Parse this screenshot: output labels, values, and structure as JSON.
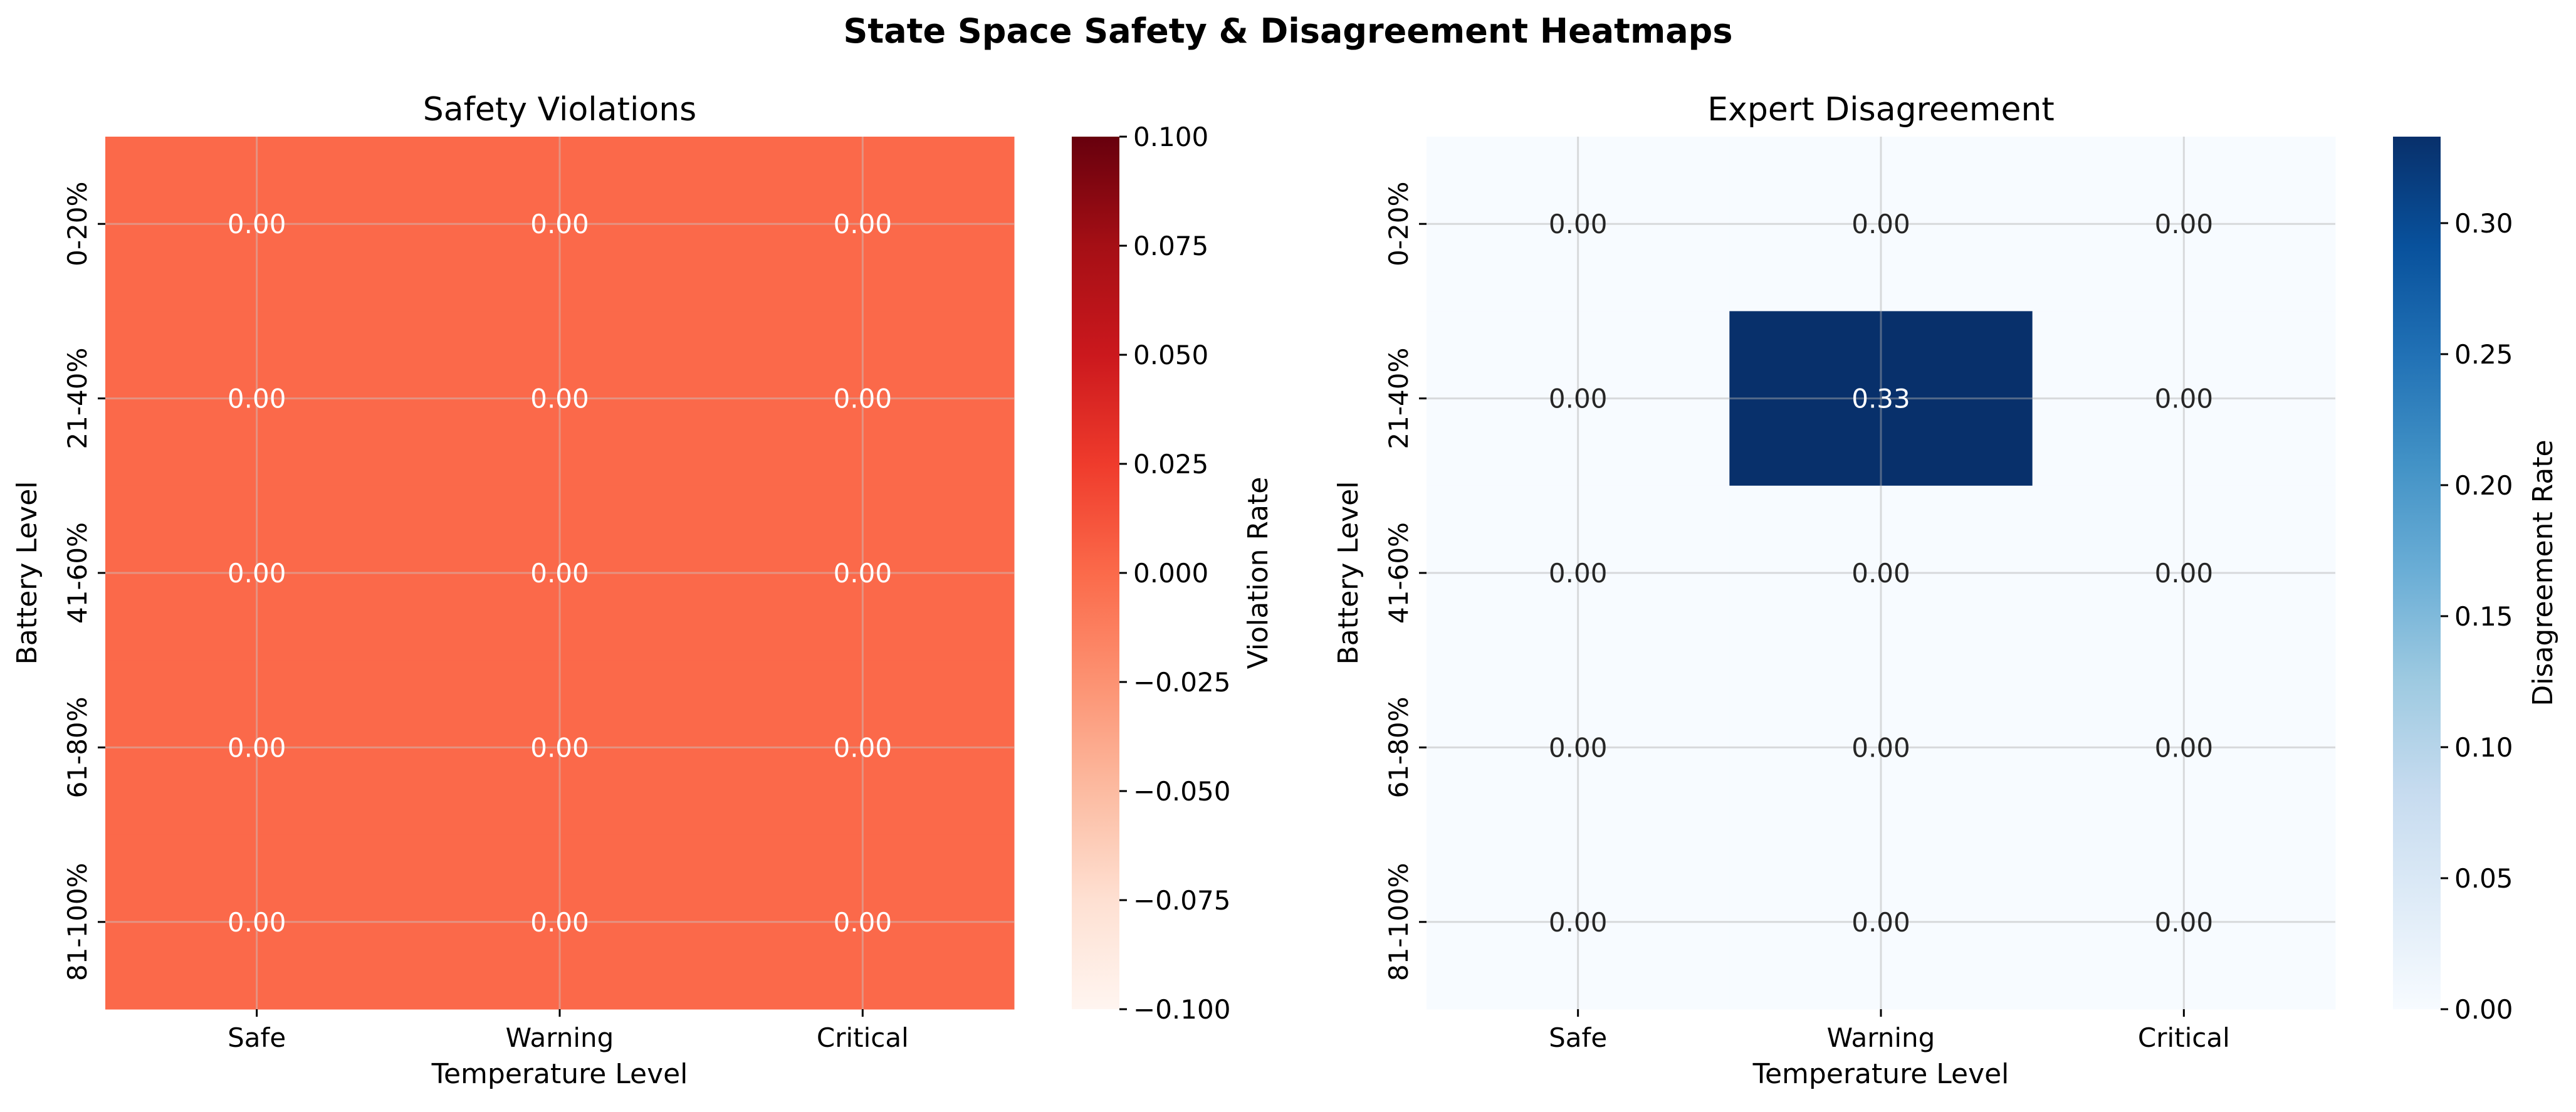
{
  "figure": {
    "title": "State Space Safety & Disagreement Heatmaps"
  },
  "chart_data": [
    {
      "type": "heatmap",
      "title": "Safety Violations",
      "xlabel": "Temperature Level",
      "ylabel": "Battery Level",
      "x_categories": [
        "Safe",
        "Warning",
        "Critical"
      ],
      "y_categories": [
        "0-20%",
        "21-40%",
        "41-60%",
        "61-80%",
        "81-100%"
      ],
      "values": [
        [
          0.0,
          0.0,
          0.0
        ],
        [
          0.0,
          0.0,
          0.0
        ],
        [
          0.0,
          0.0,
          0.0
        ],
        [
          0.0,
          0.0,
          0.0
        ],
        [
          0.0,
          0.0,
          0.0
        ]
      ],
      "cell_labels": [
        [
          "0.00",
          "0.00",
          "0.00"
        ],
        [
          "0.00",
          "0.00",
          "0.00"
        ],
        [
          "0.00",
          "0.00",
          "0.00"
        ],
        [
          "0.00",
          "0.00",
          "0.00"
        ],
        [
          "0.00",
          "0.00",
          "0.00"
        ]
      ],
      "colormap": "Reds",
      "cell_color": "#fb694a",
      "colorbar": {
        "label": "Violation Rate",
        "range": [
          -0.1,
          0.1
        ],
        "ticks": [
          0.1,
          0.075,
          0.05,
          0.025,
          0.0,
          -0.025,
          -0.05,
          -0.075,
          -0.1
        ],
        "tick_labels": [
          "0.100",
          "0.075",
          "0.050",
          "0.025",
          "0.000",
          "−0.025",
          "−0.050",
          "−0.075",
          "−0.100"
        ],
        "gradient": [
          "#67000d",
          "#a50f15",
          "#cb181d",
          "#ef3b2c",
          "#fb6a4a",
          "#fc9272",
          "#fcbba1",
          "#fee0d2",
          "#fff5f0"
        ]
      },
      "grid": true
    },
    {
      "type": "heatmap",
      "title": "Expert Disagreement",
      "xlabel": "Temperature Level",
      "ylabel": "Battery Level",
      "x_categories": [
        "Safe",
        "Warning",
        "Critical"
      ],
      "y_categories": [
        "0-20%",
        "21-40%",
        "41-60%",
        "61-80%",
        "81-100%"
      ],
      "values": [
        [
          0.0,
          0.0,
          0.0
        ],
        [
          0.0,
          0.333,
          0.0
        ],
        [
          0.0,
          0.0,
          0.0
        ],
        [
          0.0,
          0.0,
          0.0
        ],
        [
          0.0,
          0.0,
          0.0
        ]
      ],
      "cell_labels": [
        [
          "0.00",
          "0.00",
          "0.00"
        ],
        [
          "0.00",
          "0.33",
          "0.00"
        ],
        [
          "0.00",
          "0.00",
          "0.00"
        ],
        [
          "0.00",
          "0.00",
          "0.00"
        ],
        [
          "0.00",
          "0.00",
          "0.00"
        ]
      ],
      "colormap": "Blues",
      "low_color": "#f7fbff",
      "high_color": "#08306b",
      "colorbar": {
        "label": "Disagreement Rate",
        "range": [
          0.0,
          0.333
        ],
        "ticks": [
          0.3,
          0.25,
          0.2,
          0.15,
          0.1,
          0.05,
          0.0
        ],
        "tick_labels": [
          "0.30",
          "0.25",
          "0.20",
          "0.15",
          "0.10",
          "0.05",
          "0.00"
        ],
        "gradient": [
          "#08306b",
          "#08519c",
          "#2171b5",
          "#4292c6",
          "#6baed6",
          "#9ecae1",
          "#c6dbef",
          "#deebf7",
          "#f7fbff"
        ]
      },
      "grid": true
    }
  ]
}
